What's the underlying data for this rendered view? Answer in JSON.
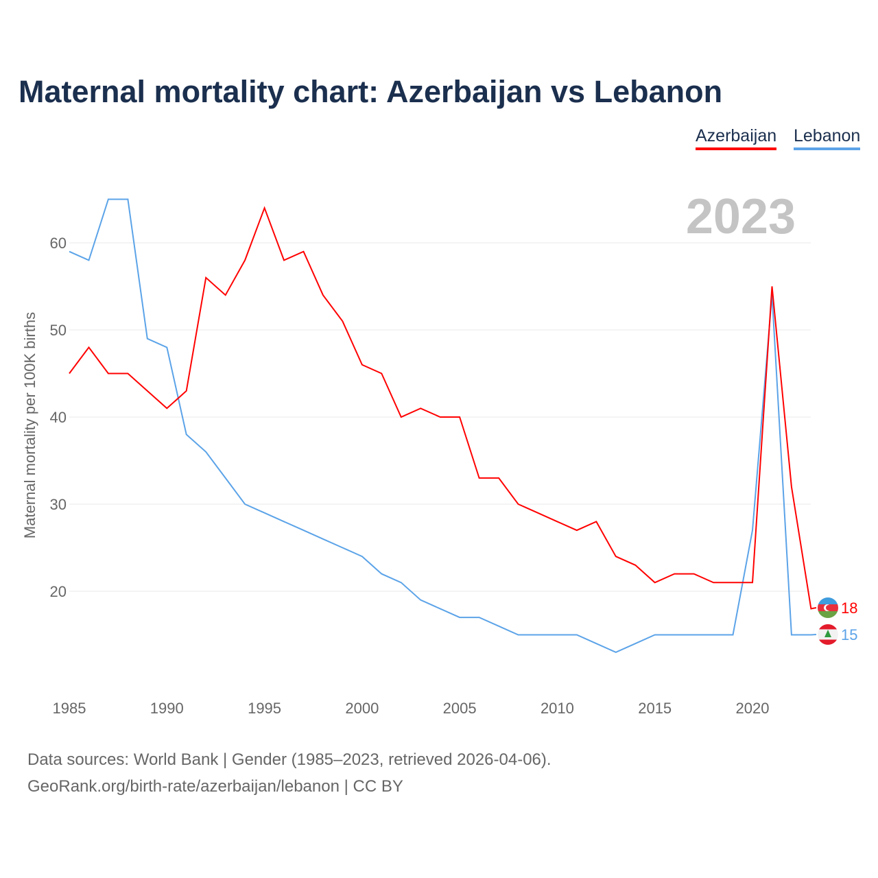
{
  "chart_data": {
    "type": "line",
    "title": "Maternal mortality chart: Azerbaijan vs Lebanon",
    "ylabel": "Maternal mortality per 100K births",
    "xlabel": "",
    "year_label": "2023",
    "x": [
      1985,
      1986,
      1987,
      1988,
      1989,
      1990,
      1991,
      1992,
      1993,
      1994,
      1995,
      1996,
      1997,
      1998,
      1999,
      2000,
      2001,
      2002,
      2003,
      2004,
      2005,
      2006,
      2007,
      2008,
      2009,
      2010,
      2011,
      2012,
      2013,
      2014,
      2015,
      2016,
      2017,
      2018,
      2019,
      2020,
      2021,
      2022,
      2023
    ],
    "xticks": [
      "1985",
      "1990",
      "1995",
      "2000",
      "2005",
      "2010",
      "2015",
      "2020"
    ],
    "yticks": [
      "20",
      "30",
      "40",
      "50",
      "60"
    ],
    "series": [
      {
        "name": "Azerbaijan",
        "color": "#ff0000",
        "end_label": "18",
        "values": [
          45,
          48,
          45,
          45,
          43,
          41,
          43,
          56,
          54,
          58,
          64,
          58,
          59,
          54,
          51,
          46,
          45,
          40,
          41,
          40,
          40,
          33,
          33,
          30,
          29,
          28,
          27,
          28,
          24,
          23,
          21,
          22,
          22,
          21,
          21,
          21,
          55,
          32,
          18
        ]
      },
      {
        "name": "Lebanon",
        "color": "#5ba3e8",
        "end_label": "15",
        "values": [
          59,
          58,
          65,
          65,
          49,
          48,
          38,
          36,
          33,
          30,
          29,
          28,
          27,
          26,
          25,
          24,
          22,
          21,
          19,
          18,
          17,
          17,
          16,
          15,
          15,
          15,
          15,
          14,
          13,
          14,
          15,
          15,
          15,
          15,
          15,
          27,
          54,
          15,
          15
        ]
      }
    ]
  },
  "footer": {
    "line1": "Data sources: World Bank | Gender (1985–2023, retrieved 2026-04-06).",
    "line2": "GeoRank.org/birth-rate/azerbaijan/lebanon | CC BY"
  }
}
